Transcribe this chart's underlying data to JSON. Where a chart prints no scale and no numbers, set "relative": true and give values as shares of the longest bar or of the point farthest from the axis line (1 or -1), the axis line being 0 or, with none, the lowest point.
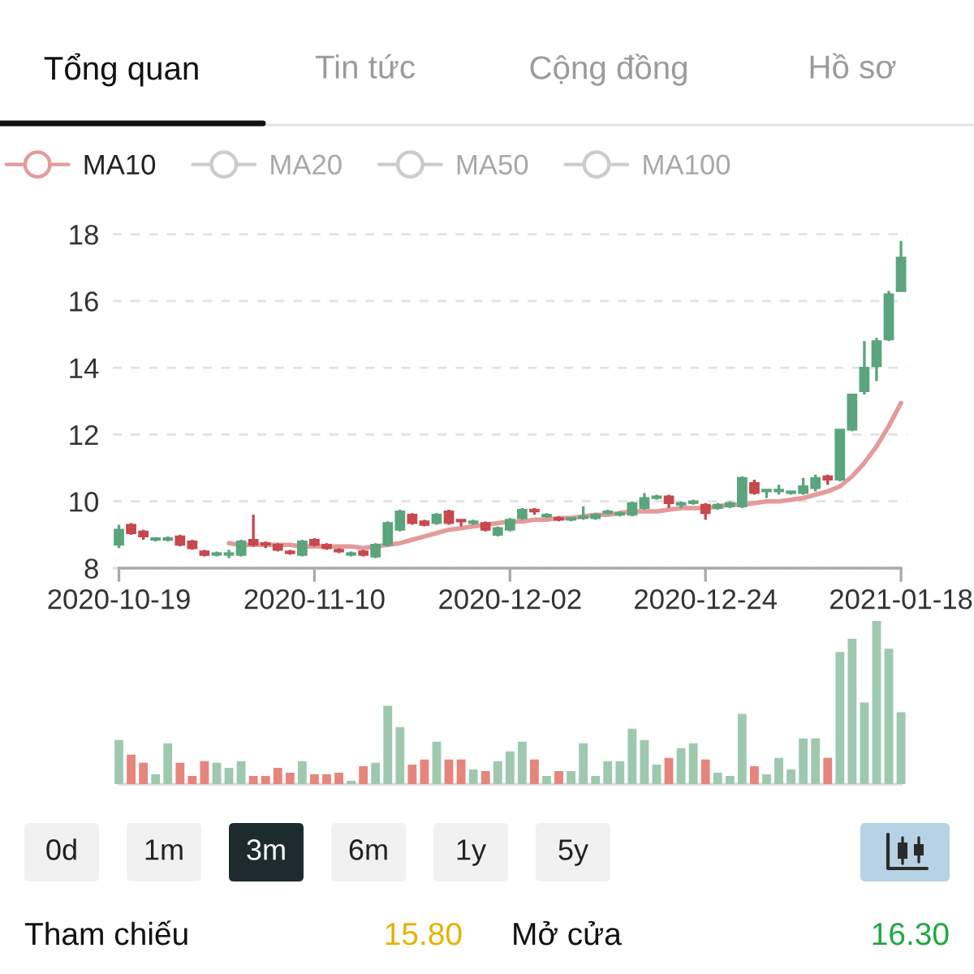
{
  "chart_data": [
    {
      "type": "other",
      "annotations": [
        "Tổng quan",
        "Tin tức",
        "Cộng đồng",
        "Hồ sơ"
      ]
    },
    {
      "type": "candlestick",
      "categories": [
        "2020-10-19",
        null,
        null,
        null,
        null,
        null,
        null,
        null,
        null,
        null,
        null,
        null,
        null,
        null,
        null,
        null,
        "2020-11-10",
        null,
        null,
        null,
        null,
        null,
        null,
        null,
        null,
        null,
        null,
        null,
        null,
        null,
        null,
        null,
        "2020-12-02",
        null,
        null,
        null,
        null,
        null,
        null,
        null,
        null,
        null,
        null,
        null,
        null,
        null,
        null,
        null,
        "2020-12-24",
        null,
        null,
        null,
        null,
        null,
        null,
        null,
        null,
        null,
        null,
        null,
        null,
        null,
        null,
        null,
        "2021-01-18"
      ],
      "ohlc": [
        [
          8.7,
          9.3,
          8.6,
          9.15
        ],
        [
          9.3,
          9.35,
          9.0,
          9.05
        ],
        [
          9.1,
          9.15,
          8.85,
          8.95
        ],
        [
          8.85,
          8.9,
          8.8,
          8.9
        ],
        [
          8.85,
          8.95,
          8.8,
          8.9
        ],
        [
          8.95,
          9.0,
          8.65,
          8.7
        ],
        [
          8.8,
          8.85,
          8.55,
          8.6
        ],
        [
          8.5,
          8.55,
          8.35,
          8.4
        ],
        [
          8.4,
          8.5,
          8.35,
          8.45
        ],
        [
          8.4,
          8.55,
          8.3,
          8.45
        ],
        [
          8.4,
          8.85,
          8.35,
          8.8
        ],
        [
          8.85,
          9.6,
          8.65,
          8.7
        ],
        [
          8.75,
          8.8,
          8.6,
          8.7
        ],
        [
          8.7,
          8.75,
          8.5,
          8.55
        ],
        [
          8.5,
          8.55,
          8.4,
          8.45
        ],
        [
          8.4,
          8.85,
          8.35,
          8.8
        ],
        [
          8.85,
          8.9,
          8.65,
          8.7
        ],
        [
          8.7,
          8.75,
          8.55,
          8.6
        ],
        [
          8.55,
          8.6,
          8.45,
          8.5
        ],
        [
          8.4,
          8.5,
          8.35,
          8.45
        ],
        [
          8.5,
          8.55,
          8.35,
          8.4
        ],
        [
          8.35,
          8.75,
          8.3,
          8.7
        ],
        [
          8.7,
          9.4,
          8.65,
          9.35
        ],
        [
          9.15,
          9.75,
          9.1,
          9.7
        ],
        [
          9.6,
          9.65,
          9.3,
          9.35
        ],
        [
          9.4,
          9.45,
          9.25,
          9.3
        ],
        [
          9.35,
          9.65,
          9.3,
          9.6
        ],
        [
          9.7,
          9.75,
          9.3,
          9.35
        ],
        [
          9.45,
          9.45,
          9.25,
          9.4
        ],
        [
          9.35,
          9.45,
          9.3,
          9.4
        ],
        [
          9.35,
          9.4,
          9.1,
          9.15
        ],
        [
          9.0,
          9.25,
          8.95,
          9.2
        ],
        [
          9.15,
          9.5,
          9.1,
          9.45
        ],
        [
          9.5,
          9.8,
          9.45,
          9.75
        ],
        [
          9.75,
          9.8,
          9.6,
          9.7
        ],
        [
          9.55,
          9.65,
          9.5,
          9.6
        ],
        [
          9.5,
          9.55,
          9.4,
          9.45
        ],
        [
          9.45,
          9.5,
          9.4,
          9.5
        ],
        [
          9.5,
          9.85,
          9.45,
          9.55
        ],
        [
          9.5,
          9.65,
          9.45,
          9.6
        ],
        [
          9.65,
          9.75,
          9.6,
          9.7
        ],
        [
          9.6,
          9.7,
          9.55,
          9.65
        ],
        [
          9.6,
          10.0,
          9.55,
          9.95
        ],
        [
          9.8,
          10.25,
          9.75,
          10.1
        ],
        [
          10.1,
          10.2,
          10.05,
          10.15
        ],
        [
          10.15,
          10.2,
          9.8,
          9.95
        ],
        [
          9.9,
          10.0,
          9.8,
          9.95
        ],
        [
          9.95,
          10.05,
          9.9,
          10.0
        ],
        [
          9.9,
          9.95,
          9.45,
          9.65
        ],
        [
          9.8,
          9.95,
          9.75,
          9.9
        ],
        [
          9.85,
          10.0,
          9.8,
          9.95
        ],
        [
          9.85,
          10.75,
          9.8,
          10.7
        ],
        [
          10.55,
          10.65,
          10.2,
          10.25
        ],
        [
          10.3,
          10.35,
          10.1,
          10.35
        ],
        [
          10.3,
          10.5,
          10.2,
          10.35
        ],
        [
          10.25,
          10.3,
          10.2,
          10.3
        ],
        [
          10.25,
          10.7,
          10.2,
          10.45
        ],
        [
          10.4,
          10.8,
          10.3,
          10.7
        ],
        [
          10.75,
          10.8,
          10.5,
          10.65
        ],
        [
          10.65,
          12.15,
          10.6,
          12.15
        ],
        [
          12.15,
          13.2,
          12.1,
          13.2
        ],
        [
          13.3,
          14.8,
          13.2,
          14.0
        ],
        [
          14.05,
          14.9,
          13.6,
          14.8
        ],
        [
          14.85,
          16.3,
          14.8,
          16.2
        ],
        [
          16.3,
          17.8,
          16.3,
          17.3
        ]
      ],
      "colors": [
        "#5aa57c",
        "#c7484d",
        "#c7484d",
        "#5aa57c",
        "#5aa57c",
        "#c7484d",
        "#c7484d",
        "#c7484d",
        "#5aa57c",
        "#5aa57c",
        "#5aa57c",
        "#c7484d",
        "#c7484d",
        "#c7484d",
        "#c7484d",
        "#5aa57c",
        "#c7484d",
        "#c7484d",
        "#c7484d",
        "#5aa57c",
        "#c7484d",
        "#5aa57c",
        "#5aa57c",
        "#5aa57c",
        "#c7484d",
        "#c7484d",
        "#5aa57c",
        "#c7484d",
        "#c7484d",
        "#5aa57c",
        "#c7484d",
        "#5aa57c",
        "#5aa57c",
        "#5aa57c",
        "#c7484d",
        "#5aa57c",
        "#c7484d",
        "#5aa57c",
        "#5aa57c",
        "#5aa57c",
        "#5aa57c",
        "#5aa57c",
        "#5aa57c",
        "#5aa57c",
        "#5aa57c",
        "#c7484d",
        "#5aa57c",
        "#5aa57c",
        "#c7484d",
        "#5aa57c",
        "#5aa57c",
        "#5aa57c",
        "#c7484d",
        "#5aa57c",
        "#5aa57c",
        "#5aa57c",
        "#5aa57c",
        "#5aa57c",
        "#c7484d",
        "#5aa57c",
        "#5aa57c",
        "#5aa57c",
        "#5aa57c",
        "#5aa57c",
        "#5aa57c"
      ],
      "series": [
        {
          "name": "MA10",
          "type": "line",
          "color": "#e59a9a",
          "values": [
            null,
            null,
            null,
            null,
            null,
            null,
            null,
            null,
            null,
            8.75,
            8.7,
            8.7,
            8.7,
            8.7,
            8.7,
            8.65,
            8.65,
            8.65,
            8.65,
            8.65,
            8.6,
            8.65,
            8.7,
            8.75,
            8.85,
            8.95,
            9.05,
            9.15,
            9.2,
            9.25,
            9.3,
            9.35,
            9.4,
            9.4,
            9.45,
            9.45,
            9.5,
            9.5,
            9.55,
            9.6,
            9.6,
            9.65,
            9.7,
            9.7,
            9.7,
            9.75,
            9.8,
            9.8,
            9.8,
            9.85,
            9.9,
            9.9,
            9.95,
            10.0,
            10.0,
            10.05,
            10.1,
            10.2,
            10.3,
            10.45,
            10.75,
            11.15,
            11.65,
            12.25,
            12.95
          ]
        },
        {
          "name": "MA20",
          "type": "line",
          "color": "#cccccc",
          "values": [
            null,
            null,
            null,
            null,
            null,
            null,
            null,
            null,
            null,
            null,
            null,
            null,
            null,
            null,
            null,
            null,
            null,
            null,
            null,
            null,
            null,
            null,
            null,
            null,
            null,
            null,
            null,
            null,
            null,
            null,
            null,
            null,
            null,
            null,
            null,
            null,
            null,
            null,
            null,
            null,
            null,
            null,
            null,
            null,
            null,
            null,
            null,
            null,
            null,
            null,
            null,
            null,
            null,
            null,
            null,
            null,
            null,
            null,
            null,
            null,
            null,
            null,
            null,
            null,
            null
          ]
        },
        {
          "name": "MA50",
          "type": "line",
          "color": "#cccccc",
          "values": [
            null,
            null,
            null,
            null,
            null,
            null,
            null,
            null,
            null,
            null,
            null,
            null,
            null,
            null,
            null,
            null,
            null,
            null,
            null,
            null,
            null,
            null,
            null,
            null,
            null,
            null,
            null,
            null,
            null,
            null,
            null,
            null,
            null,
            null,
            null,
            null,
            null,
            null,
            null,
            null,
            null,
            null,
            null,
            null,
            null,
            null,
            null,
            null,
            null,
            null,
            null,
            null,
            null,
            null,
            null,
            null,
            null,
            null,
            null,
            null,
            null,
            null,
            null,
            null,
            null
          ]
        },
        {
          "name": "MA100",
          "type": "line",
          "color": "#cccccc",
          "values": [
            null,
            null,
            null,
            null,
            null,
            null,
            null,
            null,
            null,
            null,
            null,
            null,
            null,
            null,
            null,
            null,
            null,
            null,
            null,
            null,
            null,
            null,
            null,
            null,
            null,
            null,
            null,
            null,
            null,
            null,
            null,
            null,
            null,
            null,
            null,
            null,
            null,
            null,
            null,
            null,
            null,
            null,
            null,
            null,
            null,
            null,
            null,
            null,
            null,
            null,
            null,
            null,
            null,
            null,
            null,
            null,
            null,
            null,
            null,
            null,
            null,
            null,
            null,
            null,
            null
          ]
        }
      ],
      "ylim": [
        8,
        18
      ],
      "yticks": [
        8,
        10,
        12,
        14,
        16,
        18
      ],
      "grid": "y",
      "legend": "top left"
    },
    {
      "type": "bar",
      "relative": true,
      "tick_labels": false,
      "categories": [
        "2020-10-19",
        null,
        null,
        null,
        null,
        null,
        null,
        null,
        null,
        null,
        null,
        null,
        null,
        null,
        null,
        null,
        "2020-11-10",
        null,
        null,
        null,
        null,
        null,
        null,
        null,
        null,
        null,
        null,
        null,
        null,
        null,
        null,
        null,
        "2020-12-02",
        null,
        null,
        null,
        null,
        null,
        null,
        null,
        null,
        null,
        null,
        null,
        null,
        null,
        null,
        null,
        "2020-12-24",
        null,
        null,
        null,
        null,
        null,
        null,
        null,
        null,
        null,
        null,
        null,
        null,
        null,
        null,
        null,
        "2021-01-18"
      ],
      "values": [
        0.27,
        0.18,
        0.13,
        0.06,
        0.25,
        0.13,
        0.05,
        0.14,
        0.13,
        0.1,
        0.14,
        0.05,
        0.05,
        0.1,
        0.07,
        0.14,
        0.06,
        0.06,
        0.07,
        0.02,
        0.11,
        0.13,
        0.48,
        0.35,
        0.12,
        0.15,
        0.26,
        0.15,
        0.15,
        0.09,
        0.08,
        0.14,
        0.2,
        0.26,
        0.15,
        0.05,
        0.08,
        0.08,
        0.25,
        0.05,
        0.14,
        0.14,
        0.34,
        0.27,
        0.12,
        0.16,
        0.22,
        0.25,
        0.15,
        0.07,
        0.05,
        0.43,
        0.11,
        0.06,
        0.16,
        0.09,
        0.28,
        0.28,
        0.16,
        0.81,
        0.89,
        0.5,
        1,
        0.83,
        0.44
      ],
      "colors": [
        "#9ec9af",
        "#e6857d",
        "#e6857d",
        "#9ec9af",
        "#9ec9af",
        "#e6857d",
        "#e6857d",
        "#e6857d",
        "#9ec9af",
        "#9ec9af",
        "#9ec9af",
        "#e6857d",
        "#e6857d",
        "#e6857d",
        "#e6857d",
        "#9ec9af",
        "#e6857d",
        "#e6857d",
        "#e6857d",
        "#9ec9af",
        "#e6857d",
        "#9ec9af",
        "#9ec9af",
        "#9ec9af",
        "#e6857d",
        "#e6857d",
        "#9ec9af",
        "#e6857d",
        "#e6857d",
        "#9ec9af",
        "#e6857d",
        "#9ec9af",
        "#9ec9af",
        "#9ec9af",
        "#e6857d",
        "#9ec9af",
        "#e6857d",
        "#9ec9af",
        "#9ec9af",
        "#9ec9af",
        "#9ec9af",
        "#9ec9af",
        "#9ec9af",
        "#9ec9af",
        "#9ec9af",
        "#e6857d",
        "#9ec9af",
        "#9ec9af",
        "#e6857d",
        "#9ec9af",
        "#9ec9af",
        "#9ec9af",
        "#e6857d",
        "#9ec9af",
        "#9ec9af",
        "#9ec9af",
        "#9ec9af",
        "#9ec9af",
        "#e6857d",
        "#9ec9af",
        "#9ec9af",
        "#9ec9af",
        "#9ec9af",
        "#9ec9af",
        "#9ec9af"
      ]
    },
    {
      "type": "other",
      "annotations": [
        "0d",
        "1m",
        "3m",
        "6m",
        "1y",
        "5y",
        "Tham chiếu",
        "15.80",
        "Mở cửa",
        "16.30"
      ]
    }
  ]
}
